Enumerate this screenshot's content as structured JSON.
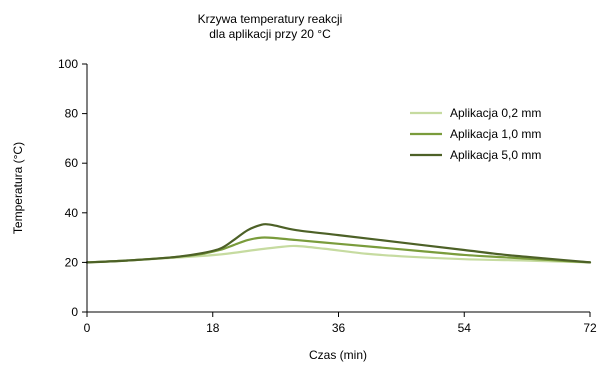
{
  "chart_data": {
    "type": "line",
    "title": [
      "Krzywa temperatury reakcji",
      "dla aplikacji przy 20 °C"
    ],
    "xlabel": "Czas (min)",
    "ylabel": "Temperatura (°C)",
    "xlim": [
      0,
      72
    ],
    "ylim": [
      0,
      100
    ],
    "xticks": [
      "0",
      "18",
      "36",
      "54",
      "72"
    ],
    "yticks": [
      "0",
      "20",
      "40",
      "60",
      "80",
      "100"
    ],
    "grid": false,
    "legend_position": "top-right",
    "series": [
      {
        "name": "Aplikacja 0,2 mm",
        "color": "#c6dba0",
        "x": [
          0,
          6,
          12,
          16,
          20,
          24,
          28,
          30,
          34,
          40,
          46,
          54,
          62,
          68,
          72
        ],
        "y": [
          20,
          20.8,
          21.8,
          22.5,
          23.5,
          25,
          26.3,
          26.6,
          25.5,
          23.5,
          22.3,
          21.3,
          20.8,
          20.3,
          20
        ]
      },
      {
        "name": "Aplikacja  1,0 mm",
        "color": "#7a9c3c",
        "x": [
          0,
          6,
          12,
          16,
          19,
          21,
          23,
          25,
          27,
          30,
          36,
          42,
          48,
          54,
          60,
          66,
          72
        ],
        "y": [
          20,
          20.8,
          22,
          23.2,
          25,
          27,
          29,
          30,
          29.8,
          29,
          27.5,
          26,
          24.5,
          23,
          22,
          21,
          20
        ]
      },
      {
        "name": "Aplikacja 5,0 mm",
        "color": "#4d6127",
        "x": [
          0,
          6,
          12,
          16,
          19,
          21,
          23,
          25,
          26,
          27,
          30,
          36,
          42,
          48,
          54,
          60,
          66,
          72
        ],
        "y": [
          20,
          20.8,
          22,
          23.5,
          25.5,
          29,
          33,
          35.2,
          35.3,
          34.8,
          33,
          31,
          29,
          27,
          25,
          23,
          21.5,
          20
        ]
      }
    ]
  }
}
